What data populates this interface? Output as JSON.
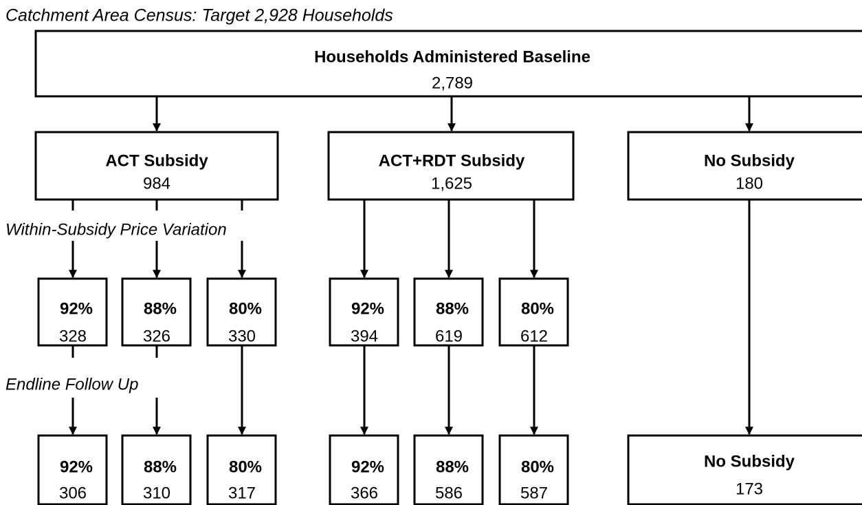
{
  "title": "Catchment Area Census: Target 2,928 Households",
  "root": {
    "label": "Households Administered Baseline",
    "count": "2,789"
  },
  "annotations": [
    "Within-Subsidy Price Variation",
    "Endline Follow Up"
  ],
  "arms": [
    {
      "label": "ACT Subsidy",
      "count": "984",
      "groups": [
        {
          "price": "92%",
          "baseline": "328",
          "endline_price": "92%",
          "endline": "306"
        },
        {
          "price": "88%",
          "baseline": "326",
          "endline_price": "88%",
          "endline": "310"
        },
        {
          "price": "80%",
          "baseline": "330",
          "endline_price": "80%",
          "endline": "317"
        }
      ]
    },
    {
      "label": "ACT+RDT Subsidy",
      "count": "1,625",
      "groups": [
        {
          "price": "92%",
          "baseline": "394",
          "endline_price": "92%",
          "endline": "366"
        },
        {
          "price": "88%",
          "baseline": "619",
          "endline_price": "88%",
          "endline": "586"
        },
        {
          "price": "80%",
          "baseline": "612",
          "endline_price": "80%",
          "endline": "587"
        }
      ]
    },
    {
      "label": "No Subsidy",
      "count": "180",
      "endline": {
        "label": "No Subsidy",
        "count": "173"
      }
    }
  ]
}
